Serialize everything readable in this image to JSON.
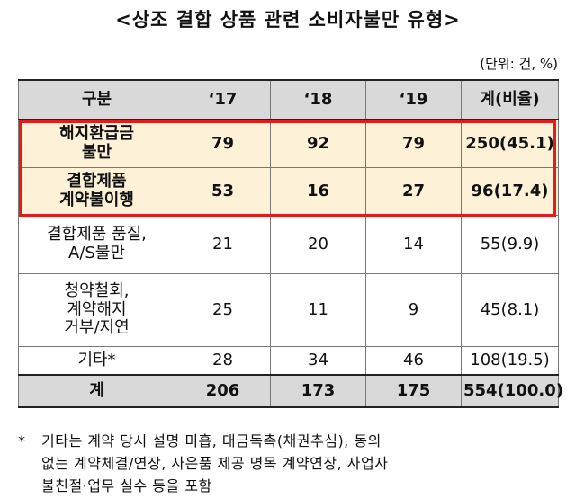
{
  "title": "<상조 결합 상품 관련 소비자불만 유형>",
  "unit": "(단위: 건, %)",
  "table": {
    "headers": [
      "구분",
      "‘17",
      "‘18",
      "‘19",
      "계(비율)"
    ],
    "rows": [
      {
        "label": "해지환급금\n불만",
        "y17": "79",
        "y18": "92",
        "y19": "79",
        "total": "250(45.1)"
      },
      {
        "label": "결합제품\n계약불이행",
        "y17": "53",
        "y18": "16",
        "y19": "27",
        "total": "96(17.4)"
      },
      {
        "label": "결합제품 품질,\nA/S불만",
        "y17": "21",
        "y18": "20",
        "y19": "14",
        "total": "55(9.9)"
      },
      {
        "label": "청약철회,\n계약해지\n거부/지연",
        "y17": "25",
        "y18": "11",
        "y19": "9",
        "total": "45(8.1)"
      },
      {
        "label": "기타*",
        "y17": "28",
        "y18": "34",
        "y19": "46",
        "total": "108(19.5)"
      }
    ],
    "total_row": {
      "label": "계",
      "y17": "206",
      "y18": "173",
      "y19": "175",
      "total": "554(100.0)"
    }
  },
  "footnote": {
    "marker": "*",
    "line1": "기타는 계약 당시 설명 미흡, 대금독촉(채권추심), 동의",
    "line2": "없는 계약체결/연장, 사은품 제공 명목 계약연장, 사업자",
    "line3": "불친절·업무 실수 등을 포함"
  },
  "colors": {
    "highlight_border": "#e31b1b",
    "highlight_fill": "#fdf1d8",
    "header_fill": "#d9d9d9"
  }
}
